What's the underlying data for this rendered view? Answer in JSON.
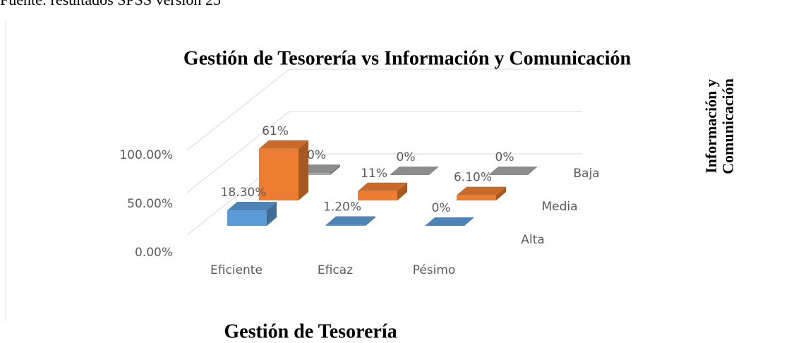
{
  "source": "Fuente: resultados SPSS versión 25",
  "chart_data": {
    "type": "bar3d",
    "title": "Gestión de Tesorería vs Información y Comunicación",
    "x_label": "Gestión de Tesorería",
    "z_label": "Información y Comunicación",
    "categories": [
      "Eficiente",
      "Eficaz",
      "Pésimo"
    ],
    "series": [
      {
        "name": "Alta",
        "color": "#5b9bd5",
        "values": [
          18.3,
          1.2,
          0
        ],
        "value_labels": [
          "18.30%",
          "1.20%",
          "0%"
        ]
      },
      {
        "name": "Media",
        "color": "#ed7d31",
        "values": [
          61,
          11,
          6.1
        ],
        "value_labels": [
          "61%",
          "11%",
          "6.10%"
        ]
      },
      {
        "name": "Baja",
        "color": "#a5a5a5",
        "values": [
          2.4,
          0,
          0
        ],
        "value_labels": [
          "2.40%",
          "0%",
          "0%"
        ]
      }
    ],
    "ylim": [
      0,
      100
    ],
    "yticks": [
      {
        "value": 0,
        "label": "0.00%"
      },
      {
        "value": 50,
        "label": "50.00%"
      },
      {
        "value": 100,
        "label": "100.00%"
      }
    ],
    "grid": true
  }
}
